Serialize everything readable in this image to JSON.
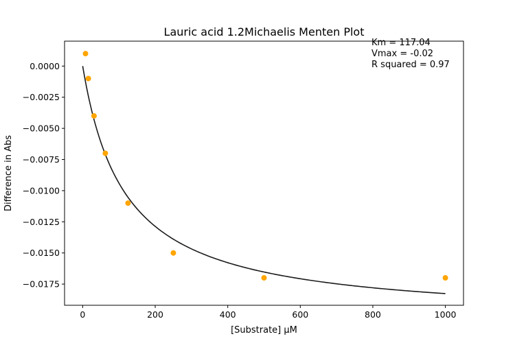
{
  "chart_data": {
    "type": "scatter",
    "title": "Lauric acid 1.2Michaelis Menten Plot",
    "xlabel": "[Substrate] µM",
    "ylabel": "Difference in Abs",
    "xlim": [
      -50,
      1050
    ],
    "ylim": [
      -0.0192,
      0.002
    ],
    "x_ticks": [
      0,
      200,
      400,
      600,
      800,
      1000
    ],
    "x_tick_labels": [
      "0",
      "200",
      "400",
      "600",
      "800",
      "1000"
    ],
    "y_ticks": [
      0.0,
      -0.0025,
      -0.005,
      -0.0075,
      -0.01,
      -0.0125,
      -0.015,
      -0.0175
    ],
    "y_tick_labels": [
      "0.0000",
      "−0.0025",
      "−0.0050",
      "−0.0075",
      "−0.0100",
      "−0.0125",
      "−0.0150",
      "−0.0175"
    ],
    "grid": false,
    "series": [
      {
        "kind": "scatter",
        "color": "#ffa500",
        "x": [
          7.8,
          15.6,
          31.25,
          62.5,
          125,
          250,
          500,
          1000
        ],
        "y": [
          0.001,
          -0.001,
          -0.004,
          -0.007,
          -0.011,
          -0.015,
          -0.017,
          -0.017
        ]
      },
      {
        "kind": "fit",
        "model": "michaelis-menten",
        "color": "#1a1a1a",
        "Km": 117.04,
        "Vmax": -0.0204,
        "x_range": [
          0,
          1000
        ]
      }
    ],
    "annotations": [
      "Km = 117.04",
      "Vmax = -0.02",
      "R squared = 0.97"
    ]
  }
}
